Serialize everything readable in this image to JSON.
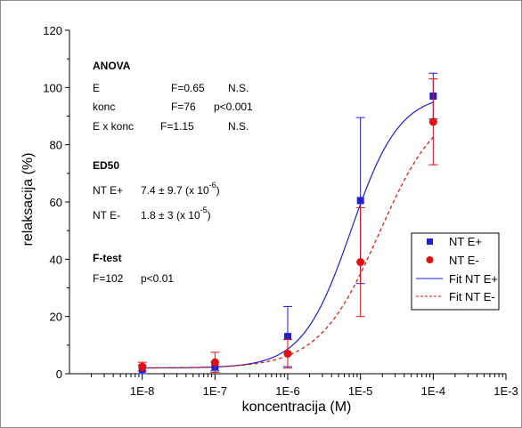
{
  "chart_data": {
    "type": "scatter",
    "xlabel": "koncentracija (M)",
    "ylabel": "relaksacija (%)",
    "xscale": "log",
    "xlim": [
      1e-09,
      0.001
    ],
    "ylim": [
      0,
      120
    ],
    "xtick_labels": [
      "1E-8",
      "1E-7",
      "1E-6",
      "1E-5",
      "1E-4",
      "1E-3"
    ],
    "xtick_values": [
      1e-08,
      1e-07,
      1e-06,
      1e-05,
      0.0001,
      0.001
    ],
    "ytick_values": [
      0,
      20,
      40,
      60,
      80,
      100,
      120
    ],
    "grid": false,
    "legend_position": "right",
    "series": [
      {
        "name": "NT E+",
        "color": "#1f1fd0",
        "marker": "square",
        "x": [
          1e-08,
          1e-07,
          1e-06,
          1e-05,
          0.0001
        ],
        "y": [
          1.5,
          2.5,
          13,
          60.5,
          97
        ],
        "err": [
          1.5,
          1.5,
          10.5,
          29,
          8
        ]
      },
      {
        "name": "NT E-",
        "color": "#e01010",
        "marker": "circle",
        "x": [
          1e-08,
          1e-07,
          1e-06,
          1e-05,
          0.0001
        ],
        "y": [
          2.5,
          4,
          7,
          39,
          88
        ],
        "err": [
          1.5,
          3.5,
          5,
          19,
          15
        ]
      }
    ],
    "fits": [
      {
        "name": "Fit NT E+",
        "color": "#1f1fd0",
        "style": "solid",
        "bottom": 2,
        "top": 98,
        "ec50": 7.4e-06,
        "hill": 1.3
      },
      {
        "name": "Fit NT E-",
        "color": "#e01010",
        "style": "dashed",
        "bottom": 2,
        "top": 96,
        "ec50": 1.8e-05,
        "hill": 1.05
      }
    ]
  },
  "annotations": {
    "anova_title": "ANOVA",
    "anova_rows": [
      [
        "E",
        "F=0.65",
        "N.S."
      ],
      [
        "konc",
        "F=76",
        "p<0.001"
      ],
      [
        "E x konc",
        "F=1.15",
        "N.S."
      ]
    ],
    "ed50_title": "ED50",
    "ed50_rows": [
      [
        "NT E+",
        "7.4 ± 9.7 (x 10",
        "-6",
        ")"
      ],
      [
        "NT E-",
        "1.8 ± 3 (x 10",
        "-5",
        ")"
      ]
    ],
    "ftest_title": "F-test",
    "ftest_row": [
      "F=102",
      "p<0.01"
    ]
  }
}
